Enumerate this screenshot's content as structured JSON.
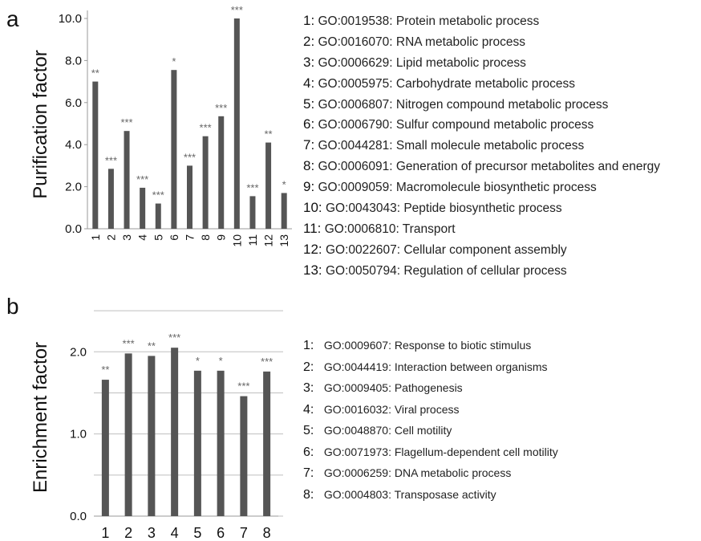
{
  "panel_a": {
    "letter": "a",
    "legend": [
      {
        "num": "1:",
        "text": "GO:0019538: Protein metabolic process"
      },
      {
        "num": "2:",
        "text": "GO:0016070: RNA metabolic process"
      },
      {
        "num": "3:",
        "text": "GO:0006629: Lipid metabolic process"
      },
      {
        "num": "4:",
        "text": "GO:0005975: Carbohydrate metabolic process"
      },
      {
        "num": "5:",
        "text": "GO:0006807: Nitrogen compound metabolic process"
      },
      {
        "num": "6:",
        "text": "GO:0006790: Sulfur compound metabolic process"
      },
      {
        "num": "7:",
        "text": "GO:0044281: Small molecule metabolic process"
      },
      {
        "num": "8:",
        "text": "GO:0006091: Generation of precursor metabolites and energy"
      },
      {
        "num": "9:",
        "text": "GO:0009059: Macromolecule biosynthetic process"
      },
      {
        "num": "10:",
        "text": "GO:0043043: Peptide biosynthetic process"
      },
      {
        "num": "11:",
        "text": "GO:0006810: Transport"
      },
      {
        "num": "12:",
        "text": "GO:0022607: Cellular component assembly"
      },
      {
        "num": "13:",
        "text": "GO:0050794: Regulation of cellular process"
      }
    ]
  },
  "panel_b": {
    "letter": "b",
    "legend": [
      {
        "num": "1:",
        "text": "GO:0009607: Response to biotic stimulus"
      },
      {
        "num": "2:",
        "text": "GO:0044419: Interaction between organisms"
      },
      {
        "num": "3:",
        "text": "GO:0009405: Pathogenesis"
      },
      {
        "num": "4:",
        "text": "GO:0016032: Viral process"
      },
      {
        "num": "5:",
        "text": "GO:0048870: Cell motility"
      },
      {
        "num": "6:",
        "text": "GO:0071973: Flagellum-dependent cell motility"
      },
      {
        "num": "7:",
        "text": "GO:0006259: DNA metabolic process"
      },
      {
        "num": "8:",
        "text": "GO:0004803: Transposase activity"
      }
    ]
  },
  "colors": {
    "bar": "#555555",
    "significance": "#666666",
    "grid": "#bfbfbf"
  },
  "chart_data": [
    {
      "type": "bar",
      "title": "",
      "xlabel": "",
      "ylabel": "Purification factor",
      "ylim": [
        0,
        10
      ],
      "yticks": [
        "0.0",
        "2.0",
        "4.0",
        "6.0",
        "8.0",
        "10.0"
      ],
      "grid": false,
      "categories": [
        "1",
        "2",
        "3",
        "4",
        "5",
        "6",
        "7",
        "8",
        "9",
        "10",
        "11",
        "12",
        "13"
      ],
      "values": [
        7.0,
        2.85,
        4.65,
        1.95,
        1.2,
        7.55,
        3.0,
        4.4,
        5.35,
        10.0,
        1.55,
        4.1,
        1.7
      ],
      "annotations": [
        "**",
        "***",
        "***",
        "***",
        "***",
        "*",
        "***",
        "***",
        "***",
        "***",
        "***",
        "**",
        "*"
      ]
    },
    {
      "type": "bar",
      "title": "",
      "xlabel": "",
      "ylabel": "Enrichment factor",
      "ylim": [
        0,
        2.55
      ],
      "yticks": [
        "0.0",
        "1.0",
        "2.0"
      ],
      "grid": true,
      "categories": [
        "1",
        "2",
        "3",
        "4",
        "5",
        "6",
        "7",
        "8"
      ],
      "values": [
        1.66,
        1.98,
        1.95,
        2.05,
        1.77,
        1.77,
        1.46,
        1.76
      ],
      "annotations": [
        "**",
        "***",
        "**",
        "***",
        "*",
        "*",
        "***",
        "***"
      ]
    }
  ]
}
